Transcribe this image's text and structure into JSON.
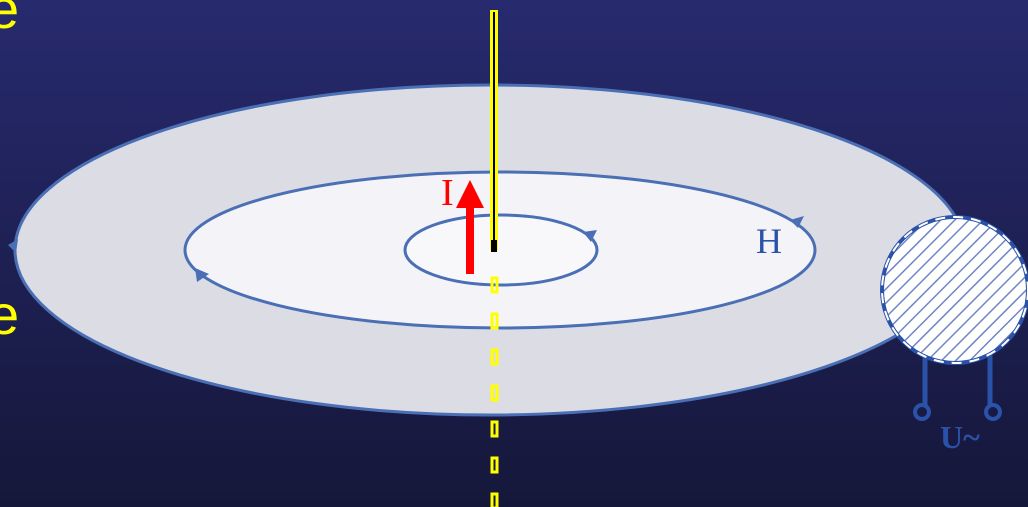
{
  "labels": {
    "top_letter": "e",
    "side_letter": "e",
    "current": "I",
    "field": "H",
    "voltage": "U~"
  }
}
